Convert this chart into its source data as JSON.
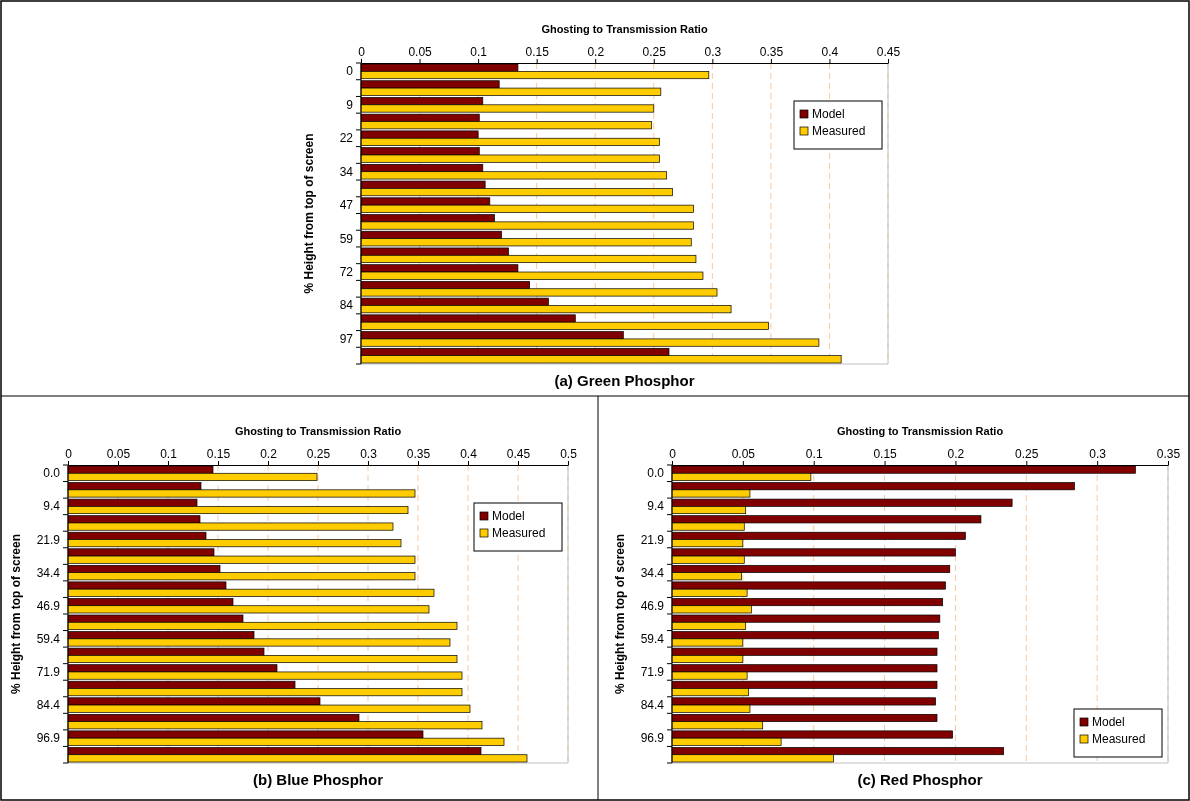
{
  "chart_data": [
    {
      "type": "bar",
      "orientation": "horizontal",
      "title": "(a) Green Phosphor",
      "xlabel": "Ghosting to Transmission Ratio",
      "ylabel": "% Height from top of screen",
      "categories": [
        "0",
        null,
        "9",
        null,
        "22",
        null,
        "34",
        null,
        "47",
        null,
        "59",
        null,
        "72",
        null,
        "84",
        null,
        "97",
        null
      ],
      "series": [
        {
          "name": "Model",
          "color": "#800000",
          "values": [
            0.134,
            0.118,
            0.104,
            0.101,
            0.1,
            0.101,
            0.104,
            0.106,
            0.11,
            0.114,
            0.12,
            0.126,
            0.134,
            0.144,
            0.16,
            0.183,
            0.224,
            0.263
          ]
        },
        {
          "name": "Measured",
          "color": "#ffcc00",
          "values": [
            0.297,
            0.256,
            0.25,
            0.248,
            0.255,
            0.255,
            0.261,
            0.266,
            0.284,
            0.284,
            0.282,
            0.286,
            0.292,
            0.304,
            0.316,
            0.348,
            0.391,
            0.41
          ]
        }
      ],
      "xlim": [
        0,
        0.45
      ],
      "xticks": [
        0,
        0.05,
        0.1,
        0.15,
        0.2,
        0.25,
        0.3,
        0.35,
        0.4,
        0.45
      ],
      "grid": "x",
      "legend": "top right"
    },
    {
      "type": "bar",
      "orientation": "horizontal",
      "title": "(b) Blue Phosphor",
      "xlabel": "Ghosting to Transmission Ratio",
      "ylabel": "% Height from top of screen",
      "categories": [
        "0.0",
        null,
        "9.4",
        null,
        "21.9",
        null,
        "34.4",
        null,
        "46.9",
        null,
        "59.4",
        null,
        "71.9",
        null,
        "84.4",
        null,
        "96.9",
        null
      ],
      "series": [
        {
          "name": "Model",
          "color": "#800000",
          "values": [
            0.145,
            0.133,
            0.129,
            0.132,
            0.138,
            0.146,
            0.152,
            0.158,
            0.165,
            0.175,
            0.186,
            0.196,
            0.209,
            0.227,
            0.252,
            0.291,
            0.355,
            0.413
          ]
        },
        {
          "name": "Measured",
          "color": "#ffcc00",
          "values": [
            0.249,
            0.347,
            0.34,
            0.325,
            0.333,
            0.347,
            0.347,
            0.366,
            0.361,
            0.389,
            0.382,
            0.389,
            0.394,
            0.394,
            0.402,
            0.414,
            0.436,
            0.459
          ]
        }
      ],
      "xlim": [
        0,
        0.5
      ],
      "xticks": [
        0,
        0.05,
        0.1,
        0.15,
        0.2,
        0.25,
        0.3,
        0.35,
        0.4,
        0.45,
        0.5
      ],
      "grid": "x",
      "legend": "top right"
    },
    {
      "type": "bar",
      "orientation": "horizontal",
      "title": "(c) Red Phosphor",
      "xlabel": "Ghosting to Transmission Ratio",
      "ylabel": "% Height from top of screen",
      "categories": [
        "0.0",
        null,
        "9.4",
        null,
        "21.9",
        null,
        "34.4",
        null,
        "46.9",
        null,
        "59.4",
        null,
        "71.9",
        null,
        "84.4",
        null,
        "96.9",
        null
      ],
      "series": [
        {
          "name": "Model",
          "color": "#800000",
          "values": [
            0.327,
            0.284,
            0.24,
            0.218,
            0.207,
            0.2,
            0.196,
            0.193,
            0.191,
            0.189,
            0.188,
            0.187,
            0.187,
            0.187,
            0.186,
            0.187,
            0.198,
            0.234
          ]
        },
        {
          "name": "Measured",
          "color": "#ffcc00",
          "values": [
            0.098,
            0.055,
            0.052,
            0.051,
            0.05,
            0.051,
            0.049,
            0.053,
            0.056,
            0.052,
            0.05,
            0.05,
            0.053,
            0.054,
            0.055,
            0.064,
            0.077,
            0.114
          ]
        }
      ],
      "xlim": [
        0,
        0.35
      ],
      "xticks": [
        0,
        0.05,
        0.1,
        0.15,
        0.2,
        0.25,
        0.3,
        0.35
      ],
      "grid": "x",
      "legend": "bottom right"
    }
  ]
}
